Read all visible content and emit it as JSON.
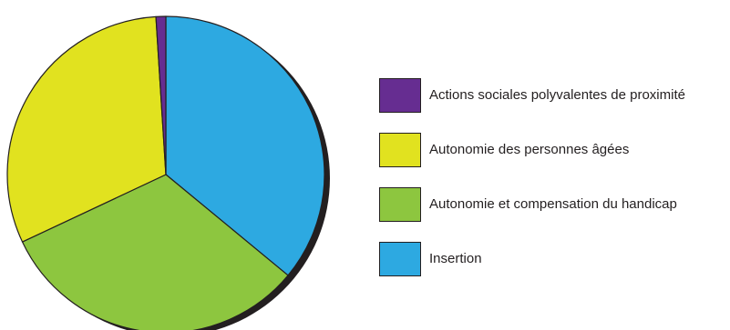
{
  "chart_data": {
    "type": "pie",
    "title": "",
    "slices": [
      {
        "label": "Insertion",
        "value": 36.0,
        "color": "#2da9e1"
      },
      {
        "label": "Autonomie et compensation du handicap",
        "value": 32.0,
        "color": "#8dc63f"
      },
      {
        "label": "Autonomie des personnes âgées",
        "value": 31.0,
        "color": "#e1e21f"
      },
      {
        "label": "Actions sociales polyvalentes de proximité",
        "value": 1.0,
        "color": "#662d91"
      }
    ],
    "legend": {
      "placement": "right",
      "order": [
        "Actions sociales polyvalentes de proximité",
        "Autonomie des personnes âgées",
        "Autonomie et compensation du handicap",
        "Insertion"
      ]
    },
    "shadow_color": "#231f20",
    "outline_color": "#231f20"
  },
  "legend_items": [
    {
      "label": "Actions sociales polyvalentes de proximité",
      "color": "#662d91"
    },
    {
      "label": "Autonomie des personnes âgées",
      "color": "#e1e21f"
    },
    {
      "label": "Autonomie et compensation du handicap",
      "color": "#8dc63f"
    },
    {
      "label": "Insertion",
      "color": "#2da9e1"
    }
  ]
}
